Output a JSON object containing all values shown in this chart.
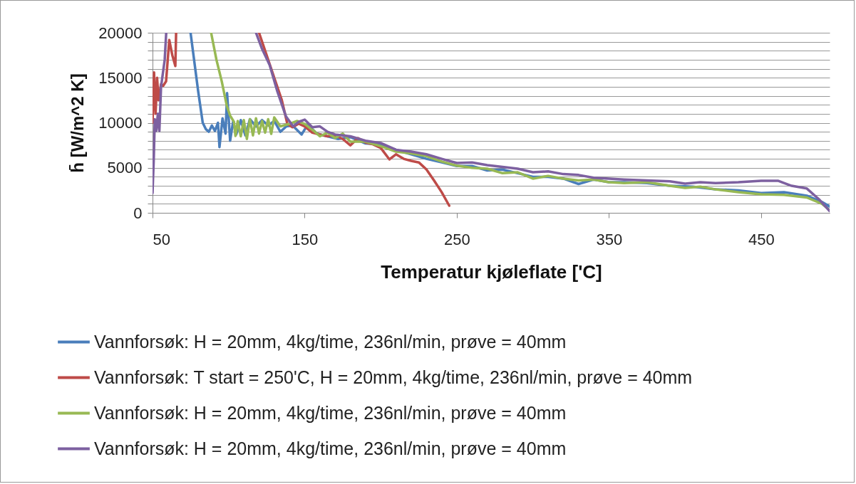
{
  "chart_data": {
    "type": "line",
    "xlabel": "Temperatur kjøleflate ['C]",
    "ylabel": "h̄ [W/m^2 K]",
    "xlim": [
      50,
      495
    ],
    "xticks": [
      50,
      150,
      250,
      350,
      450
    ],
    "ylim": [
      0,
      20000
    ],
    "yticks": [
      0,
      {
        "value": 1000,
        "label": null
      },
      {
        "value": 2000,
        "label": null
      },
      {
        "value": 3000,
        "label": null
      },
      {
        "value": 4000,
        "label": null
      },
      5000,
      {
        "value": 6000,
        "label": null
      },
      {
        "value": 7000,
        "label": null
      },
      {
        "value": 8000,
        "label": null
      },
      {
        "value": 9000,
        "label": null
      },
      10000,
      {
        "value": 11000,
        "label": null
      },
      {
        "value": 12000,
        "label": null
      },
      {
        "value": 13000,
        "label": null
      },
      {
        "value": 14000,
        "label": null
      },
      15000,
      {
        "value": 16000,
        "label": null
      },
      {
        "value": 17000,
        "label": null
      },
      {
        "value": 18000,
        "label": null
      },
      {
        "value": 19000,
        "label": null
      },
      20000
    ],
    "grid": "y",
    "legend": "bottom",
    "marker": "none",
    "line_style": "solid",
    "series": [
      {
        "name": "Vannforsøk:  H = 20mm, 4kg/time, 236nl/min, prøve = 40mm",
        "color": "#4a7ebb",
        "x": [
          75,
          80,
          83,
          85,
          87,
          89,
          91,
          93,
          94,
          96,
          98,
          99,
          101,
          103,
          105,
          108,
          111,
          114,
          118,
          122,
          126,
          130,
          134,
          138,
          142,
          148,
          152,
          158,
          165,
          172,
          180,
          190,
          200,
          210,
          220,
          230,
          240,
          250,
          260,
          270,
          280,
          290,
          300,
          310,
          320,
          330,
          340,
          350,
          360,
          375,
          390,
          405,
          420,
          435,
          450,
          465,
          480,
          490,
          495
        ],
        "values": [
          20000,
          13500,
          10000,
          9300,
          9000,
          9700,
          9100,
          10000,
          7300,
          10500,
          8800,
          13300,
          8000,
          10200,
          8700,
          10300,
          8600,
          10400,
          9600,
          10300,
          9700,
          10200,
          9000,
          9600,
          9700,
          8700,
          9800,
          8800,
          8500,
          8200,
          8400,
          7700,
          7600,
          7000,
          6500,
          6000,
          5600,
          5200,
          5200,
          4700,
          4800,
          4400,
          4000,
          4000,
          3800,
          3200,
          3700,
          3400,
          3400,
          3300,
          3000,
          2900,
          2600,
          2500,
          2200,
          2300,
          1900,
          1200,
          700
        ]
      },
      {
        "name": "Vannforsøk:  T start = 250'C, H = 20mm, 4kg/time, 236nl/min, prøve = 40mm",
        "color": "#be4b48",
        "x": [
          50,
          51,
          52,
          53,
          54,
          55.6,
          57,
          58.9,
          60,
          61,
          63,
          65,
          65.5,
          66,
          120,
          125,
          130,
          135,
          138.6,
          142,
          146,
          150,
          155,
          160,
          165,
          170,
          175,
          180,
          185,
          190,
          195,
          200,
          205.7,
          210,
          215,
          220,
          225,
          230,
          235,
          240,
          245
        ],
        "values": [
          10000,
          15600,
          11000,
          15000,
          12500,
          14300,
          14100,
          14600,
          17000,
          19200,
          17500,
          16300,
          20000,
          null,
          20000,
          17500,
          15000,
          12500,
          9880,
          9500,
          9900,
          9600,
          8900,
          8700,
          8500,
          8600,
          8200,
          7500,
          8300,
          7800,
          7600,
          7200,
          5930,
          6500,
          6000,
          5770,
          5600,
          4820,
          3600,
          2300,
          790
        ]
      },
      {
        "name": "Vannforsøk:  H = 20mm, 4kg/time, 236nl/min, prøve = 40mm",
        "color": "#98b954",
        "x": [
          88.5,
          92,
          95.5,
          98.8,
          101,
          103.5,
          104.5,
          106,
          108,
          110,
          112,
          114,
          116,
          118,
          120,
          122,
          124,
          126,
          128,
          130,
          134,
          140,
          145,
          150,
          156,
          160,
          165,
          170,
          175,
          180,
          190,
          200,
          210,
          220,
          230,
          240,
          250,
          260,
          270,
          280,
          290,
          300,
          310,
          320,
          330,
          340,
          350,
          360,
          375,
          390,
          400,
          410,
          420,
          435,
          450,
          465,
          480,
          490,
          495
        ],
        "values": [
          20000,
          17000,
          14600,
          11900,
          10800,
          10100,
          8540,
          10200,
          8500,
          10300,
          8200,
          10400,
          8600,
          10500,
          8800,
          10200,
          8900,
          10400,
          8770,
          10600,
          9600,
          9880,
          10200,
          9880,
          9100,
          8500,
          8900,
          8300,
          8800,
          7900,
          7900,
          7400,
          6800,
          6600,
          6300,
          5700,
          5240,
          5000,
          4900,
          4400,
          4500,
          3800,
          4100,
          3800,
          3600,
          3700,
          3400,
          3300,
          3400,
          3000,
          2770,
          2900,
          2600,
          2300,
          2060,
          2000,
          1700,
          1000,
          300
        ]
      },
      {
        "name": "Vannforsøk:  H = 20mm, 4kg/time, 236nl/min, prøve = 40mm",
        "color": "#7d60a0",
        "x": [
          50,
          50.8,
          51.5,
          52.5,
          53.5,
          54.5,
          55.6,
          58,
          59,
          60,
          118,
          122,
          127,
          132,
          137.7,
          142.4,
          146,
          150,
          155,
          160,
          165,
          170,
          180,
          190,
          200,
          210,
          220,
          230,
          240,
          250,
          260,
          270,
          280,
          290,
          300,
          310,
          320,
          330,
          340,
          350,
          360,
          375,
          390,
          400,
          410,
          420,
          435,
          450,
          461,
          470,
          480,
          488,
          495
        ],
        "values": [
          2200,
          5900,
          10400,
          9100,
          11000,
          9100,
          14000,
          17000,
          20000,
          null,
          20000,
          18200,
          16400,
          13500,
          10700,
          9600,
          10100,
          10350,
          9500,
          9600,
          9000,
          8700,
          8500,
          8000,
          7750,
          7000,
          6800,
          6500,
          6000,
          5530,
          5600,
          5300,
          5100,
          4900,
          4500,
          4600,
          4300,
          4200,
          3900,
          3800,
          3700,
          3600,
          3500,
          3240,
          3400,
          3300,
          3400,
          3560,
          3560,
          3000,
          2700,
          1500,
          200
        ]
      }
    ]
  }
}
